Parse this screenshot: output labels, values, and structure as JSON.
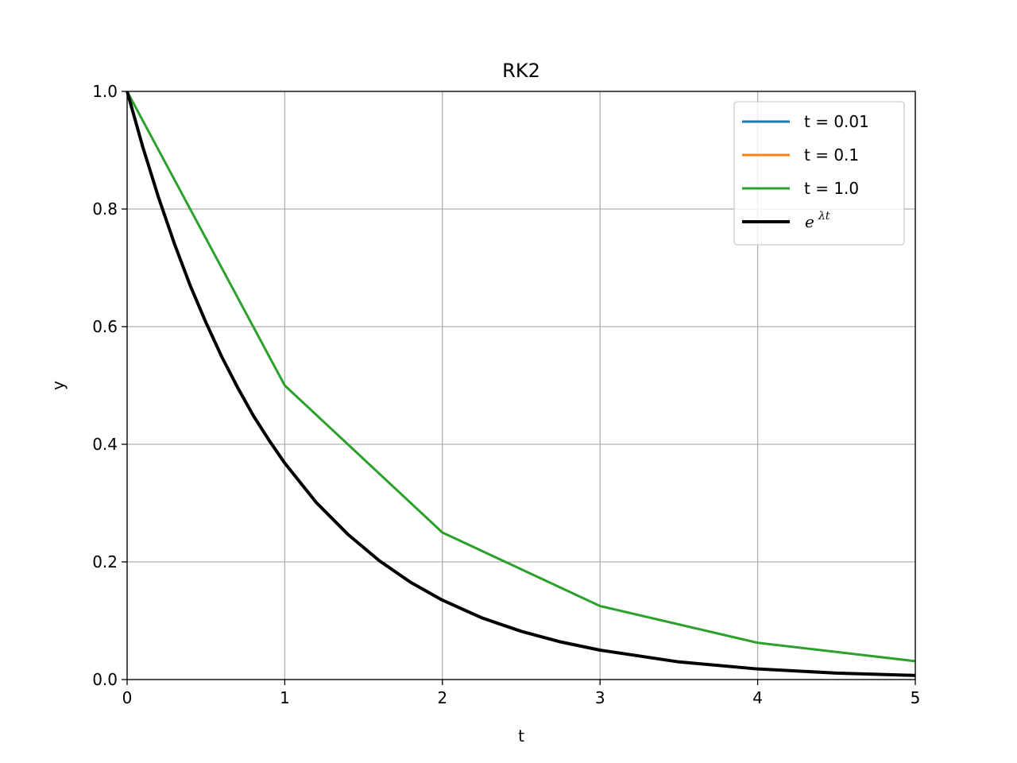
{
  "chart_data": {
    "type": "line",
    "title": "RK2",
    "xlabel": "t",
    "ylabel": "y",
    "xlim": [
      0,
      5
    ],
    "ylim": [
      0,
      1.0
    ],
    "xticks": [
      "0",
      "1",
      "2",
      "3",
      "4",
      "5"
    ],
    "yticks": [
      "0.0",
      "0.2",
      "0.4",
      "0.6",
      "0.8",
      "1.0"
    ],
    "grid": true,
    "legend_position": "top-right",
    "series": [
      {
        "name": "t = 0.01",
        "color": "#1f77b4",
        "x": [],
        "y": []
      },
      {
        "name": "t = 0.1",
        "color": "#ff7f0e",
        "x": [],
        "y": []
      },
      {
        "name": "t = 1.0",
        "color": "#2ca02c",
        "x": [
          0,
          1,
          2,
          3,
          4,
          5
        ],
        "y": [
          1.0,
          0.5,
          0.25,
          0.125,
          0.0625,
          0.03125
        ]
      },
      {
        "name_base": "e",
        "name_sup": "λt",
        "color": "#000000",
        "x": [
          0,
          0.1,
          0.2,
          0.3,
          0.4,
          0.5,
          0.6,
          0.7,
          0.8,
          0.9,
          1.0,
          1.2,
          1.4,
          1.6,
          1.8,
          2.0,
          2.25,
          2.5,
          2.75,
          3.0,
          3.5,
          4.0,
          4.5,
          5.0
        ],
        "y": [
          1.0,
          0.905,
          0.819,
          0.741,
          0.67,
          0.607,
          0.549,
          0.497,
          0.449,
          0.407,
          0.368,
          0.301,
          0.247,
          0.202,
          0.165,
          0.135,
          0.105,
          0.082,
          0.064,
          0.05,
          0.03,
          0.018,
          0.011,
          0.007
        ]
      }
    ]
  }
}
